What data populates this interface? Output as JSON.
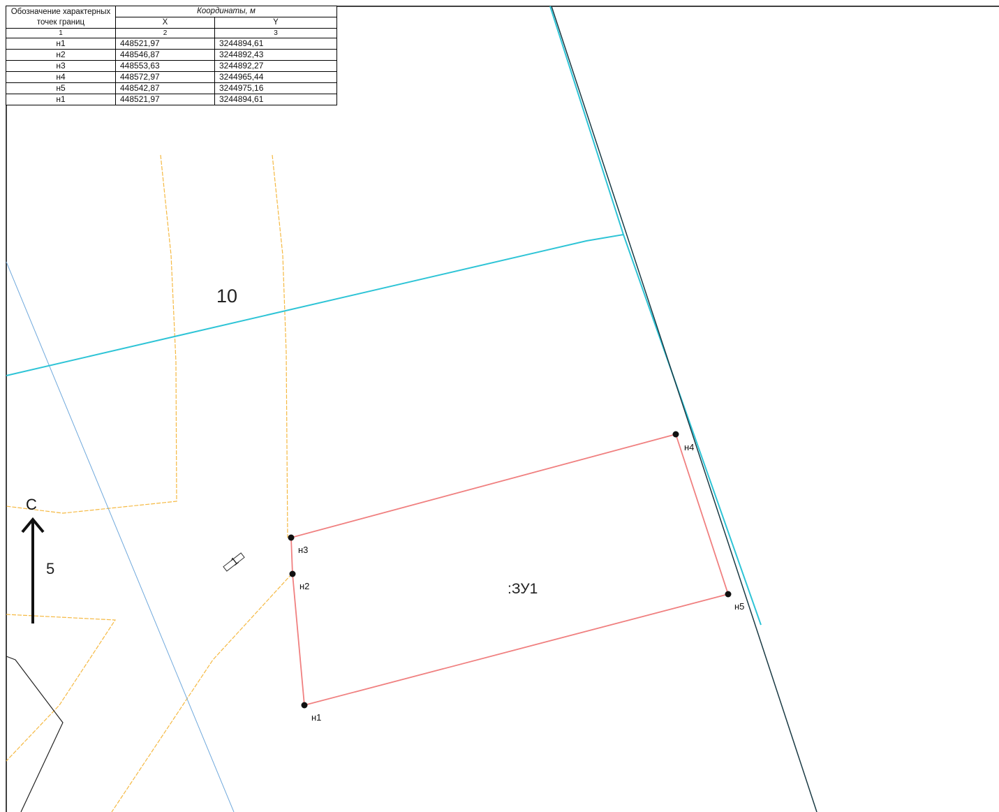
{
  "table": {
    "header_point": "Обозначение характерных точек границ",
    "header_coords": "Координаты, м",
    "header_x": "X",
    "header_y": "Y",
    "col_num_1": "1",
    "col_num_2": "2",
    "col_num_3": "3",
    "rows": [
      {
        "point": "н1",
        "x": "448521,97",
        "y": "3244894,61"
      },
      {
        "point": "н2",
        "x": "448546,87",
        "y": "3244892,43"
      },
      {
        "point": "н3",
        "x": "448553,63",
        "y": "3244892,27"
      },
      {
        "point": "н4",
        "x": "448572,97",
        "y": "3244965,44"
      },
      {
        "point": "н5",
        "x": "448542,87",
        "y": "3244975,16"
      },
      {
        "point": "н1",
        "x": "448521,97",
        "y": "3244894,61"
      }
    ]
  },
  "map": {
    "parcel_label": ":ЗУ1",
    "block_label_10": "10",
    "block_label_5": "5",
    "block_label_1": "1",
    "north_label": "С",
    "points": {
      "n1": "н1",
      "n2": "н2",
      "n3": "н3",
      "n4": "н4",
      "n5": "н5"
    },
    "colors": {
      "parcel_boundary": "#f08080",
      "cyan_line": "#2ec4d6",
      "orange_dashed": "#f5b942",
      "blue_thin": "#6fa8dc",
      "dark_line": "#1a1a1a"
    }
  }
}
